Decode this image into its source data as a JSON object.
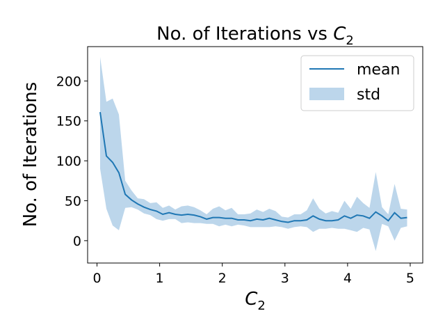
{
  "chart_data": {
    "type": "line",
    "title": {
      "prefix": "No. of Iterations vs ",
      "var": "C",
      "sub": "2"
    },
    "xlabel": {
      "var": "C",
      "sub": "2"
    },
    "ylabel": "No. of Iterations",
    "xlim": [
      -0.15,
      5.2
    ],
    "ylim": [
      -28,
      243
    ],
    "xticks": [
      0,
      1,
      2,
      3,
      4,
      5
    ],
    "yticks": [
      0,
      50,
      100,
      150,
      200
    ],
    "grid": false,
    "legend_position": "top-right",
    "colors": {
      "mean": "#1f77b4",
      "std": "#a6c8e4",
      "axis": "#000000"
    },
    "x": [
      0.05,
      0.15,
      0.25,
      0.35,
      0.45,
      0.55,
      0.65,
      0.75,
      0.85,
      0.95,
      1.05,
      1.15,
      1.25,
      1.35,
      1.45,
      1.55,
      1.65,
      1.75,
      1.85,
      1.95,
      2.05,
      2.15,
      2.25,
      2.35,
      2.45,
      2.55,
      2.65,
      2.75,
      2.85,
      2.95,
      3.05,
      3.15,
      3.25,
      3.35,
      3.45,
      3.55,
      3.65,
      3.75,
      3.85,
      3.95,
      4.05,
      4.15,
      4.25,
      4.35,
      4.45,
      4.55,
      4.65,
      4.75,
      4.85,
      4.95
    ],
    "series": [
      {
        "name": "mean",
        "values": [
          161,
          106,
          98,
          85,
          58,
          51,
          46,
          42,
          39,
          37,
          33,
          35,
          33,
          32,
          33,
          32,
          30,
          27,
          29,
          29,
          28,
          28,
          26,
          26,
          25,
          27,
          26,
          28,
          26,
          24,
          23,
          25,
          25,
          26,
          31,
          27,
          25,
          25,
          26,
          31,
          28,
          32,
          31,
          28,
          36,
          31,
          25,
          35,
          28,
          29
        ]
      },
      {
        "name": "std",
        "upper": [
          230,
          174,
          178,
          158,
          75,
          63,
          53,
          52,
          47,
          48,
          41,
          44,
          39,
          43,
          44,
          42,
          38,
          33,
          40,
          43,
          38,
          41,
          33,
          33,
          34,
          39,
          36,
          40,
          37,
          30,
          29,
          33,
          33,
          38,
          53,
          40,
          34,
          37,
          35,
          50,
          40,
          55,
          47,
          41,
          86,
          42,
          33,
          71,
          40,
          39
        ],
        "lower": [
          90,
          40,
          19,
          13,
          41,
          42,
          39,
          34,
          32,
          27,
          25,
          27,
          27,
          22,
          23,
          22,
          22,
          21,
          21,
          18,
          20,
          18,
          20,
          19,
          17,
          17,
          17,
          17,
          18,
          17,
          15,
          17,
          18,
          17,
          11,
          15,
          15,
          16,
          15,
          15,
          13,
          11,
          16,
          14,
          -13,
          21,
          18,
          0,
          16,
          18
        ]
      }
    ]
  }
}
